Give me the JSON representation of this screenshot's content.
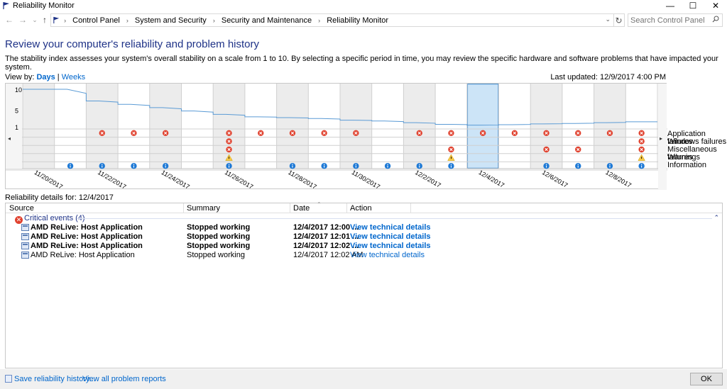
{
  "window": {
    "title": "Reliability Monitor",
    "minimize": "—",
    "maximize": "☐",
    "close": "✕"
  },
  "address": {
    "back": "←",
    "forward": "→",
    "dropdown_small": "⌄",
    "up": "↑",
    "crumbs": [
      "Control Panel",
      "System and Security",
      "Security and Maintenance",
      "Reliability Monitor"
    ],
    "crumb_sep": "›",
    "dropdown": "⌄",
    "refresh": "↻",
    "search_placeholder": "Search Control Panel"
  },
  "page": {
    "heading": "Review your computer's reliability and problem history",
    "description": "The stability index assesses your system's overall stability on a scale from 1 to 10. By selecting a specific period in time, you may review the specific hardware and software problems that have impacted your system.",
    "view_by_label": "View by:",
    "view_days": "Days",
    "view_sep": "|",
    "view_weeks": "Weeks",
    "last_updated": "Last updated: 12/9/2017 4:00 PM"
  },
  "chart_data": {
    "type": "line",
    "ylim": [
      1,
      10
    ],
    "y_ticks": [
      "10",
      "5",
      "1"
    ],
    "x_labels": [
      "11/20/2017",
      "11/22/2017",
      "11/24/2017",
      "11/26/2017",
      "11/28/2017",
      "11/30/2017",
      "12/2/2017",
      "12/4/2017",
      "12/6/2017",
      "12/8/2017"
    ],
    "selected_day": "12/4/2017",
    "rows": [
      "Application failures",
      "Windows failures",
      "Miscellaneous failures",
      "Warnings",
      "Information"
    ],
    "columns": 20,
    "stability": [
      10,
      10,
      7.2,
      6.4,
      5.6,
      4.8,
      4.0,
      3.4,
      3.2,
      3.0,
      2.6,
      2.4,
      2.0,
      1.6,
      1.4,
      1.5,
      1.7,
      1.8,
      2.0,
      2.2
    ],
    "app_failures": [
      0,
      0,
      1,
      1,
      1,
      0,
      1,
      1,
      1,
      1,
      1,
      0,
      1,
      1,
      1,
      1,
      1,
      1,
      1,
      1
    ],
    "win_failures": [
      0,
      0,
      0,
      0,
      0,
      0,
      1,
      0,
      0,
      0,
      0,
      0,
      0,
      0,
      0,
      0,
      0,
      0,
      0,
      1
    ],
    "misc_failures": [
      0,
      0,
      0,
      0,
      0,
      0,
      1,
      0,
      0,
      0,
      0,
      0,
      0,
      1,
      0,
      0,
      1,
      1,
      0,
      1
    ],
    "warnings": [
      0,
      0,
      0,
      0,
      0,
      0,
      1,
      0,
      0,
      0,
      0,
      0,
      0,
      1,
      0,
      0,
      0,
      0,
      0,
      1
    ],
    "information": [
      0,
      1,
      1,
      1,
      1,
      0,
      1,
      0,
      1,
      1,
      1,
      1,
      1,
      1,
      0,
      0,
      1,
      1,
      1,
      1
    ]
  },
  "details": {
    "label": "Reliability details for: 12/4/2017",
    "columns": {
      "source": "Source",
      "summary": "Summary",
      "date": "Date",
      "action": "Action",
      "sort_glyph": "⌃"
    },
    "group_label": "Critical events (4)",
    "group_icon": "✕",
    "collapse": "⌃",
    "rows": [
      {
        "source": "AMD ReLive: Host Application",
        "summary": "Stopped working",
        "date": "12/4/2017 12:00 ...",
        "action": "View  technical details",
        "bold": true
      },
      {
        "source": "AMD ReLive: Host Application",
        "summary": "Stopped working",
        "date": "12/4/2017 12:01 ...",
        "action": "View  technical details",
        "bold": true
      },
      {
        "source": "AMD ReLive: Host Application",
        "summary": "Stopped working",
        "date": "12/4/2017 12:02 ...",
        "action": "View  technical details",
        "bold": true
      },
      {
        "source": "AMD ReLive: Host Application",
        "summary": "Stopped working",
        "date": "12/4/2017 12:02 AM",
        "action": "View  technical details",
        "bold": false
      }
    ]
  },
  "footer": {
    "save_history": "Save reliability history...",
    "view_all": "View all problem reports",
    "ok": "OK"
  }
}
